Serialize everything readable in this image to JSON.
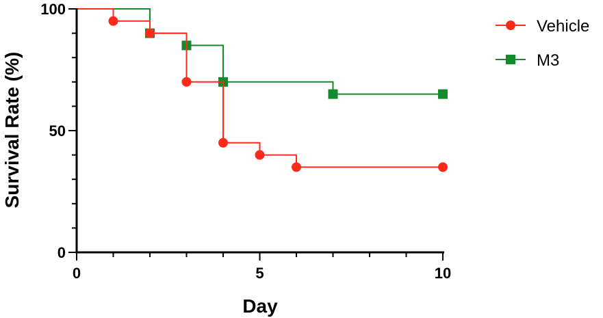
{
  "chart_data": {
    "type": "line",
    "subtype": "kaplan-meier step plot",
    "xlabel": "Day",
    "ylabel": "Survival Rate (%)",
    "xlim": [
      0,
      10
    ],
    "ylim": [
      0,
      100
    ],
    "x_ticks": [
      "0",
      "5",
      "10"
    ],
    "y_ticks": [
      "0",
      "50",
      "100"
    ],
    "grid": false,
    "legend_position": "top-right",
    "series": [
      {
        "name": "Vehicle",
        "color": "#ff2a1a",
        "marker": "circle",
        "steps": [
          [
            0,
            100
          ],
          [
            1,
            95
          ],
          [
            2,
            90
          ],
          [
            3,
            70
          ],
          [
            4,
            45
          ],
          [
            5,
            40
          ],
          [
            6,
            35
          ],
          [
            10,
            35
          ]
        ]
      },
      {
        "name": "M3",
        "color": "#138a2b",
        "marker": "square",
        "steps": [
          [
            0,
            100
          ],
          [
            2,
            90
          ],
          [
            3,
            85
          ],
          [
            4,
            70
          ],
          [
            7,
            65
          ],
          [
            10,
            65
          ]
        ]
      }
    ]
  }
}
